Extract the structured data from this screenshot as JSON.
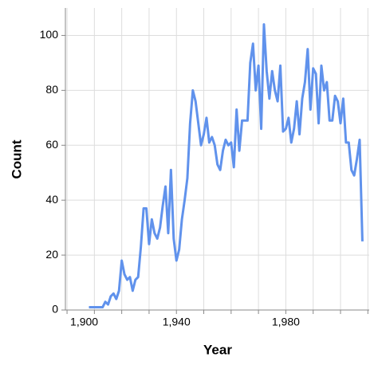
{
  "chart_data": {
    "type": "line",
    "x_label": "Year",
    "y_label": "Count",
    "x": [
      1908,
      1909,
      1910,
      1911,
      1912,
      1913,
      1914,
      1915,
      1916,
      1917,
      1918,
      1919,
      1920,
      1921,
      1922,
      1923,
      1924,
      1925,
      1926,
      1927,
      1928,
      1929,
      1930,
      1931,
      1932,
      1933,
      1934,
      1935,
      1936,
      1937,
      1938,
      1939,
      1940,
      1941,
      1942,
      1943,
      1944,
      1945,
      1946,
      1947,
      1948,
      1949,
      1950,
      1951,
      1952,
      1953,
      1954,
      1955,
      1956,
      1957,
      1958,
      1959,
      1960,
      1961,
      1962,
      1963,
      1964,
      1965,
      1966,
      1967,
      1968,
      1969,
      1970,
      1971,
      1972,
      1973,
      1974,
      1975,
      1976,
      1977,
      1978,
      1979,
      1980,
      1981,
      1982,
      1983,
      1984,
      1985,
      1986,
      1987,
      1988,
      1989,
      1990,
      1991,
      1992,
      1993,
      1994,
      1995,
      1996,
      1997,
      1998,
      1999,
      2000,
      2001,
      2002,
      2003,
      2004,
      2005,
      2006,
      2007,
      2008
    ],
    "series": [
      {
        "name": "Count",
        "color": "#6092ec",
        "values": [
          1,
          1,
          1,
          1,
          1,
          1,
          3,
          2,
          5,
          6,
          4,
          7,
          18,
          13,
          11,
          12,
          7,
          11,
          12,
          23,
          37,
          37,
          24,
          33,
          28,
          26,
          30,
          38,
          45,
          28,
          51,
          26,
          18,
          22,
          33,
          40,
          48,
          68,
          80,
          76,
          68,
          60,
          64,
          70,
          61,
          63,
          60,
          53,
          51,
          58,
          62,
          60,
          61,
          52,
          73,
          58,
          69,
          69,
          69,
          90,
          97,
          80,
          89,
          66,
          104,
          87,
          77,
          87,
          80,
          76,
          89,
          65,
          66,
          70,
          61,
          66,
          76,
          64,
          77,
          83,
          95,
          73,
          88,
          86,
          68,
          89,
          80,
          83,
          69,
          69,
          78,
          76,
          68,
          77,
          61,
          61,
          51,
          49,
          55,
          62,
          25
        ]
      }
    ],
    "xlim": [
      1899.4,
      2010.5
    ],
    "xticks": [
      {
        "value": 1900,
        "label": "1,900"
      },
      {
        "value": 1940,
        "label": "1,940"
      },
      {
        "value": 1980,
        "label": "1,980"
      }
    ],
    "x_minor_ticks": [
      1900,
      1910,
      1920,
      1930,
      1940,
      1950,
      1960,
      1970,
      1980,
      1990,
      2000,
      2010
    ],
    "ylim": [
      0,
      110
    ],
    "yticks": [
      0,
      20,
      40,
      60,
      80,
      100
    ],
    "grid": true
  }
}
